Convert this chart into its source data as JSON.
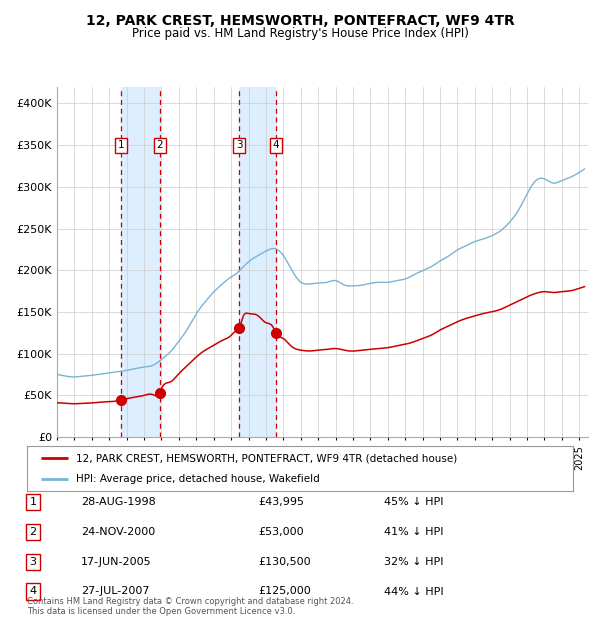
{
  "title": "12, PARK CREST, HEMSWORTH, PONTEFRACT, WF9 4TR",
  "subtitle": "Price paid vs. HM Land Registry's House Price Index (HPI)",
  "xlim": [
    1995.0,
    2025.5
  ],
  "ylim": [
    0,
    420000
  ],
  "yticks": [
    0,
    50000,
    100000,
    150000,
    200000,
    250000,
    300000,
    350000,
    400000
  ],
  "ytick_labels": [
    "£0",
    "£50K",
    "£100K",
    "£150K",
    "£200K",
    "£250K",
    "£300K",
    "£350K",
    "£400K"
  ],
  "sale_dates_decimal": [
    1998.66,
    2000.9,
    2005.46,
    2007.57
  ],
  "sale_prices": [
    43995,
    53000,
    130500,
    125000
  ],
  "sale_labels": [
    "1",
    "2",
    "3",
    "4"
  ],
  "sale_label_info": [
    {
      "num": "1",
      "date": "28-AUG-1998",
      "price": "£43,995",
      "hpi": "45% ↓ HPI"
    },
    {
      "num": "2",
      "date": "24-NOV-2000",
      "price": "£53,000",
      "hpi": "41% ↓ HPI"
    },
    {
      "num": "3",
      "date": "17-JUN-2005",
      "price": "£130,500",
      "hpi": "32% ↓ HPI"
    },
    {
      "num": "4",
      "date": "27-JUL-2007",
      "price": "£125,000",
      "hpi": "44% ↓ HPI"
    }
  ],
  "legend_line1": "12, PARK CREST, HEMSWORTH, PONTEFRACT, WF9 4TR (detached house)",
  "legend_line2": "HPI: Average price, detached house, Wakefield",
  "footer_line1": "Contains HM Land Registry data © Crown copyright and database right 2024.",
  "footer_line2": "This data is licensed under the Open Government Licence v3.0.",
  "hpi_color": "#7ab3d4",
  "price_color": "#cc0000",
  "shade_color": "#ddeeff",
  "dashed_color": "#cc0000",
  "background_color": "#ffffff",
  "grid_color": "#cccccc",
  "hpi_points": [
    [
      1995.0,
      75000
    ],
    [
      1995.5,
      73000
    ],
    [
      1996.0,
      72000
    ],
    [
      1996.5,
      73000
    ],
    [
      1997.0,
      74000
    ],
    [
      1997.5,
      75500
    ],
    [
      1998.0,
      77000
    ],
    [
      1998.5,
      78500
    ],
    [
      1999.0,
      80000
    ],
    [
      1999.5,
      82000
    ],
    [
      2000.0,
      84000
    ],
    [
      2000.5,
      86000
    ],
    [
      2001.0,
      93000
    ],
    [
      2001.5,
      102000
    ],
    [
      2002.0,
      115000
    ],
    [
      2002.5,
      130000
    ],
    [
      2003.0,
      148000
    ],
    [
      2003.5,
      162000
    ],
    [
      2004.0,
      174000
    ],
    [
      2004.5,
      184000
    ],
    [
      2005.0,
      192000
    ],
    [
      2005.3,
      196000
    ],
    [
      2005.5,
      200000
    ],
    [
      2006.0,
      210000
    ],
    [
      2006.5,
      217000
    ],
    [
      2007.0,
      223000
    ],
    [
      2007.5,
      226000
    ],
    [
      2008.0,
      218000
    ],
    [
      2008.5,
      200000
    ],
    [
      2009.0,
      186000
    ],
    [
      2009.5,
      184000
    ],
    [
      2010.0,
      185000
    ],
    [
      2010.5,
      186000
    ],
    [
      2011.0,
      188000
    ],
    [
      2011.5,
      183000
    ],
    [
      2012.0,
      182000
    ],
    [
      2012.5,
      183000
    ],
    [
      2013.0,
      185000
    ],
    [
      2013.5,
      186000
    ],
    [
      2014.0,
      186000
    ],
    [
      2014.5,
      188000
    ],
    [
      2015.0,
      190000
    ],
    [
      2015.5,
      195000
    ],
    [
      2016.0,
      200000
    ],
    [
      2016.5,
      205000
    ],
    [
      2017.0,
      212000
    ],
    [
      2017.5,
      218000
    ],
    [
      2018.0,
      225000
    ],
    [
      2018.5,
      230000
    ],
    [
      2019.0,
      235000
    ],
    [
      2019.5,
      238000
    ],
    [
      2020.0,
      242000
    ],
    [
      2020.5,
      248000
    ],
    [
      2021.0,
      258000
    ],
    [
      2021.5,
      272000
    ],
    [
      2022.0,
      292000
    ],
    [
      2022.5,
      308000
    ],
    [
      2023.0,
      310000
    ],
    [
      2023.5,
      305000
    ],
    [
      2024.0,
      308000
    ],
    [
      2024.5,
      312000
    ],
    [
      2025.0,
      318000
    ],
    [
      2025.3,
      322000
    ]
  ],
  "red_points": [
    [
      1995.0,
      41000
    ],
    [
      1995.5,
      40500
    ],
    [
      1996.0,
      40000
    ],
    [
      1996.5,
      40500
    ],
    [
      1997.0,
      41000
    ],
    [
      1997.5,
      42000
    ],
    [
      1998.0,
      42500
    ],
    [
      1998.5,
      43500
    ],
    [
      1998.66,
      43995
    ],
    [
      1999.0,
      46000
    ],
    [
      1999.5,
      48000
    ],
    [
      2000.0,
      50000
    ],
    [
      2000.5,
      51000
    ],
    [
      2000.9,
      53000
    ],
    [
      2001.0,
      58000
    ],
    [
      2001.5,
      66000
    ],
    [
      2002.0,
      76000
    ],
    [
      2002.5,
      86000
    ],
    [
      2003.0,
      96000
    ],
    [
      2003.5,
      104000
    ],
    [
      2004.0,
      110000
    ],
    [
      2004.5,
      116000
    ],
    [
      2005.0,
      122000
    ],
    [
      2005.2,
      126000
    ],
    [
      2005.46,
      130500
    ],
    [
      2005.7,
      145000
    ],
    [
      2006.0,
      148000
    ],
    [
      2006.5,
      146000
    ],
    [
      2007.0,
      137000
    ],
    [
      2007.4,
      132000
    ],
    [
      2007.57,
      125000
    ],
    [
      2008.0,
      118000
    ],
    [
      2008.3,
      112000
    ],
    [
      2008.5,
      108000
    ],
    [
      2009.0,
      104000
    ],
    [
      2009.5,
      103000
    ],
    [
      2010.0,
      104000
    ],
    [
      2010.5,
      105000
    ],
    [
      2011.0,
      106000
    ],
    [
      2011.5,
      104000
    ],
    [
      2012.0,
      103000
    ],
    [
      2012.5,
      104000
    ],
    [
      2013.0,
      105000
    ],
    [
      2013.5,
      106000
    ],
    [
      2014.0,
      107000
    ],
    [
      2014.5,
      109000
    ],
    [
      2015.0,
      111000
    ],
    [
      2015.5,
      114000
    ],
    [
      2016.0,
      118000
    ],
    [
      2016.5,
      122000
    ],
    [
      2017.0,
      128000
    ],
    [
      2017.5,
      133000
    ],
    [
      2018.0,
      138000
    ],
    [
      2018.5,
      142000
    ],
    [
      2019.0,
      145000
    ],
    [
      2019.5,
      148000
    ],
    [
      2020.0,
      150000
    ],
    [
      2020.5,
      153000
    ],
    [
      2021.0,
      158000
    ],
    [
      2021.5,
      163000
    ],
    [
      2022.0,
      168000
    ],
    [
      2022.5,
      172000
    ],
    [
      2023.0,
      174000
    ],
    [
      2023.5,
      173000
    ],
    [
      2024.0,
      174000
    ],
    [
      2024.5,
      175000
    ],
    [
      2025.0,
      178000
    ],
    [
      2025.3,
      180000
    ]
  ]
}
